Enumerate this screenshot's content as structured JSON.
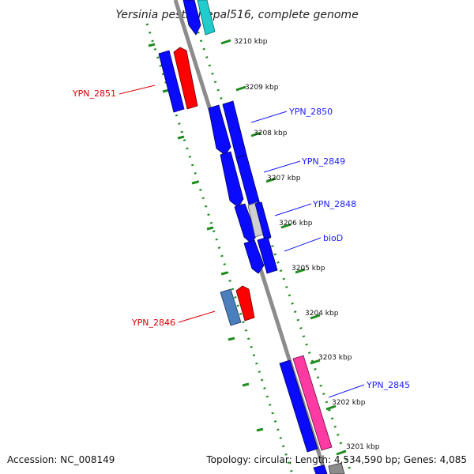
{
  "title": "Yersinia pestis Nepal516, complete genome",
  "accession": "Accession: NC_008149",
  "summary": "Topology: circular; Length: 4,534,590 bp; Genes: 4,085",
  "colors": {
    "backbone": "#8c8c8c",
    "dots": "#1e8c1e",
    "cds_blue": "#0a0aff",
    "cds_red": "#ff0000",
    "cds_pink": "#ff3aa3",
    "cds_steel": "#4a7ebd",
    "cds_cyan": "#22cccc",
    "cds_grey": "#c8c8c8",
    "label_blue": "#1a1aff",
    "label_red": "#dd0000"
  },
  "kbp_ticks": [
    "3210 kbp",
    "3209 kbp",
    "3208 kbp",
    "3207 kbp",
    "3206 kbp",
    "3205 kbp",
    "3204 kbp",
    "3203 kbp",
    "3202 kbp",
    "3201 kbp"
  ],
  "gene_labels": [
    {
      "text": "YPN_2851",
      "side": "left"
    },
    {
      "text": "YPN_2850",
      "side": "right"
    },
    {
      "text": "YPN_2849",
      "side": "right"
    },
    {
      "text": "YPN_2848",
      "side": "right"
    },
    {
      "text": "bioD",
      "side": "right"
    },
    {
      "text": "YPN_2846",
      "side": "left"
    },
    {
      "text": "YPN_2845",
      "side": "right"
    }
  ]
}
